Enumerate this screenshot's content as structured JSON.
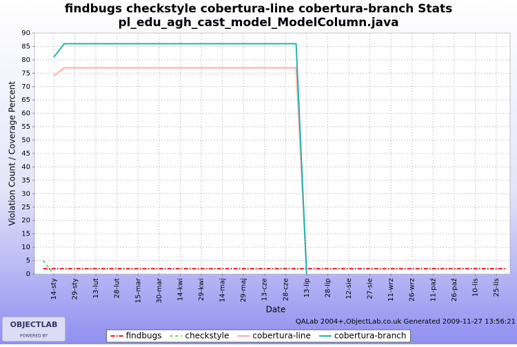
{
  "chart_data": {
    "type": "line",
    "title": "findbugs checkstyle cobertura-line cobertura-branch  Stats",
    "subtitle": "pl_edu_agh_cast_model_ModelColumn.java",
    "x_label": "Date",
    "y_label": "Violation Count / Coverage Percent",
    "categories": [
      null,
      "14-sty",
      null,
      "29-sty",
      null,
      "13-lut",
      null,
      "28-lut",
      null,
      "15-mar",
      null,
      "30-mar",
      null,
      "14-kwi",
      null,
      "29-kwi",
      null,
      "14-maj",
      null,
      "29-maj",
      null,
      "13-cze",
      null,
      "28-cze",
      null,
      "13-lip",
      null,
      "28-lip",
      null,
      "12-sie",
      null,
      "27-sie",
      null,
      "11-wrz",
      null,
      "26-wrz",
      null,
      "11-paź",
      null,
      "26-paź",
      null,
      "10-lis",
      null,
      "25-lis",
      null
    ],
    "series": [
      {
        "name": "findbugs",
        "color": "#e0161c",
        "dash": "6,2,2,2",
        "values": [
          2,
          2,
          2,
          2,
          2,
          2,
          2,
          2,
          2,
          2,
          2,
          2,
          2,
          2,
          2,
          2,
          2,
          2,
          2,
          2,
          2,
          2,
          2,
          2,
          2,
          2,
          2,
          2,
          2,
          2,
          2,
          2,
          2,
          2,
          2,
          2,
          2,
          2,
          2,
          2,
          2,
          2,
          2,
          2,
          2
        ]
      },
      {
        "name": "checkstyle",
        "color": "#55e055",
        "dash": "4,4",
        "values": [
          5,
          0,
          null,
          null,
          null,
          null,
          null,
          null,
          null,
          null,
          null,
          null,
          null,
          null,
          null,
          null,
          null,
          null,
          null,
          null,
          null,
          null,
          null,
          null,
          null,
          null,
          null,
          null,
          null,
          null,
          null,
          null,
          null,
          null,
          null,
          null,
          null,
          null,
          null,
          null,
          null,
          null,
          null,
          null,
          null
        ]
      },
      {
        "name": "cobertura-line",
        "color": "#ffaaaa",
        "dash": "",
        "values": [
          null,
          74,
          77,
          77,
          77,
          77,
          77,
          77,
          77,
          77,
          77,
          77,
          77,
          77,
          77,
          77,
          77,
          77,
          77,
          77,
          77,
          77,
          77,
          77,
          77,
          0,
          null,
          null,
          null,
          null,
          null,
          null,
          null,
          null,
          null,
          null,
          null,
          null,
          null,
          null,
          null,
          null,
          null,
          null,
          null
        ]
      },
      {
        "name": "cobertura-branch",
        "color": "#1fb5ad",
        "dash": "",
        "values": [
          null,
          81,
          86,
          86,
          86,
          86,
          86,
          86,
          86,
          86,
          86,
          86,
          86,
          86,
          86,
          86,
          86,
          86,
          86,
          86,
          86,
          86,
          86,
          86,
          86,
          0,
          null,
          null,
          null,
          null,
          null,
          null,
          null,
          null,
          null,
          null,
          null,
          null,
          null,
          null,
          null,
          null,
          null,
          null,
          null
        ]
      }
    ],
    "ylim": [
      0,
      90
    ],
    "yticks": [
      0,
      5,
      10,
      15,
      20,
      25,
      30,
      35,
      40,
      45,
      50,
      55,
      60,
      65,
      70,
      75,
      80,
      85,
      90
    ],
    "grid": true,
    "legend": "bottom"
  },
  "footer": "QALab 2004+,ObjectLab.co.uk Generated 2009-11-27 13:56:21",
  "logo": {
    "name": "OBJECTLAB",
    "tagline": "POWERED BY"
  }
}
